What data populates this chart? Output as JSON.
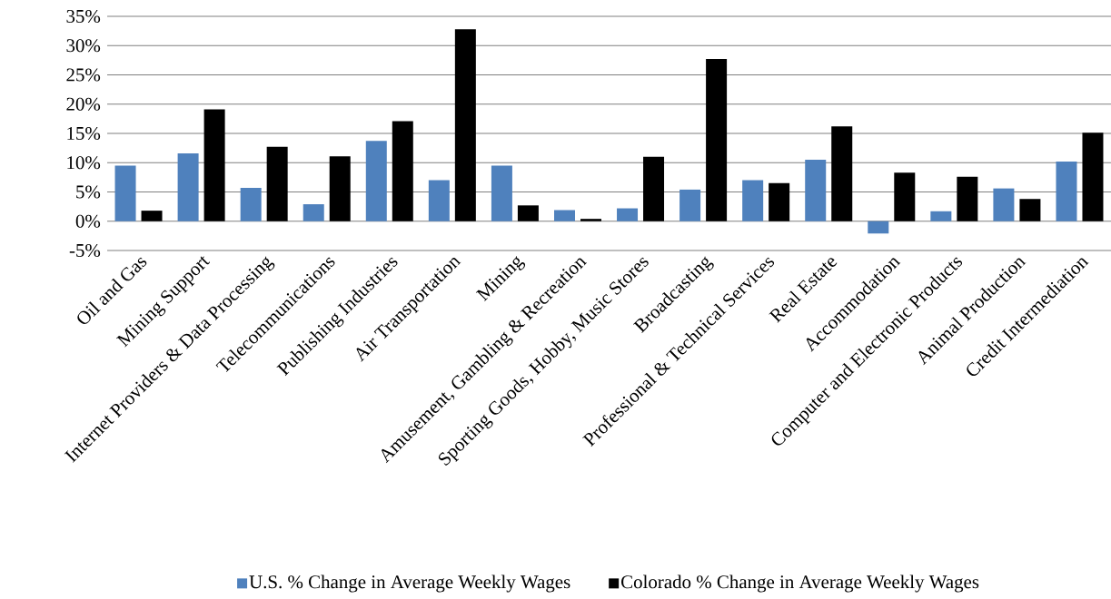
{
  "chart_data": {
    "type": "bar",
    "categories": [
      "Oil and Gas",
      "Mining Support",
      "Internet Providers & Data Processing",
      "Telecommunications",
      "Publishing Industries",
      "Air Transportation",
      "Mining",
      "Amusement, Gambling & Recreation",
      "Sporting Goods, Hobby, Music Stores",
      "Broadcasting",
      "Professional & Technical Services",
      "Real Estate",
      "Accommodation",
      "Computer and Electronic Products",
      "Animal Production",
      "Credit Intermediation"
    ],
    "series": [
      {
        "name": "U.S.  % Change in Average Weekly Wages",
        "color": "#4f81bd",
        "values": [
          9.5,
          11.6,
          5.7,
          2.9,
          13.7,
          7.0,
          9.5,
          1.9,
          2.2,
          5.4,
          7.0,
          10.5,
          -2.1,
          1.7,
          5.6,
          10.2
        ]
      },
      {
        "name": "Colorado % Change in Average Weekly Wages",
        "color": "#000000",
        "values": [
          1.8,
          19.1,
          12.7,
          11.1,
          17.1,
          32.8,
          2.7,
          0.4,
          11.0,
          27.7,
          6.5,
          16.2,
          8.3,
          7.6,
          3.8,
          15.1
        ]
      }
    ],
    "ylim": [
      -5,
      35
    ],
    "yticks": [
      {
        "value": -5,
        "label": "-5%"
      },
      {
        "value": 0,
        "label": "0%"
      },
      {
        "value": 5,
        "label": "5%"
      },
      {
        "value": 10,
        "label": "10%"
      },
      {
        "value": 15,
        "label": "15%"
      },
      {
        "value": 20,
        "label": "20%"
      },
      {
        "value": 25,
        "label": "25%"
      },
      {
        "value": 30,
        "label": "30%"
      },
      {
        "value": 35,
        "label": "35%"
      }
    ],
    "grid": "y",
    "legend": "bottom"
  }
}
